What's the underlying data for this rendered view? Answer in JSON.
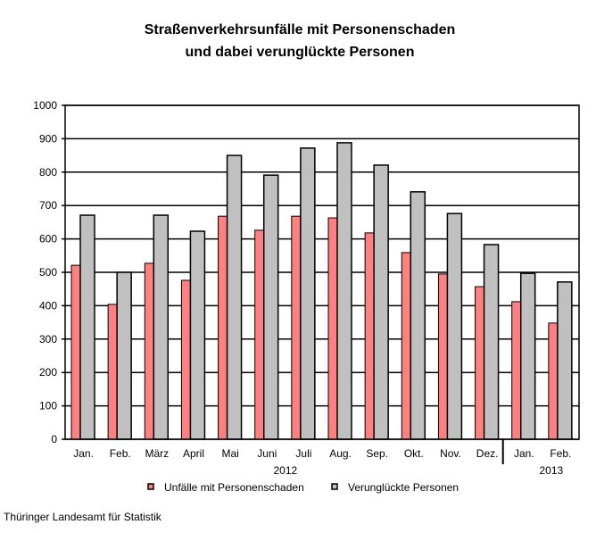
{
  "chart_data": {
    "type": "bar",
    "title": [
      "Straßenverkehrsunfälle mit Personenschaden",
      "und dabei verunglückte Personen"
    ],
    "categories": [
      "Jan.",
      "Feb.",
      "März",
      "April",
      "Mai",
      "Juni",
      "Juli",
      "Aug.",
      "Sep.",
      "Okt.",
      "Nov.",
      "Dez.",
      "Jan.",
      "Feb."
    ],
    "year_labels": [
      {
        "label": "2012",
        "from": 0,
        "to": 11
      },
      {
        "label": "2013",
        "from": 12,
        "to": 13
      }
    ],
    "series": [
      {
        "name": "Unfälle mit Personenschaden",
        "color": "#ff8080",
        "values": [
          521,
          404,
          527,
          476,
          668,
          626,
          668,
          663,
          618,
          559,
          495,
          457,
          412,
          348
        ]
      },
      {
        "name": "Verunglückte Personen",
        "color": "#c0c0c0",
        "values": [
          671,
          500,
          671,
          623,
          850,
          791,
          872,
          888,
          821,
          741,
          676,
          583,
          497,
          471
        ]
      }
    ],
    "ylim": [
      0,
      1000
    ],
    "yticks": [
      0,
      100,
      200,
      300,
      400,
      500,
      600,
      700,
      800,
      900,
      1000
    ],
    "grid": true,
    "legend": "bottom"
  },
  "footer": "Thüringer Landesamt für Statistik"
}
